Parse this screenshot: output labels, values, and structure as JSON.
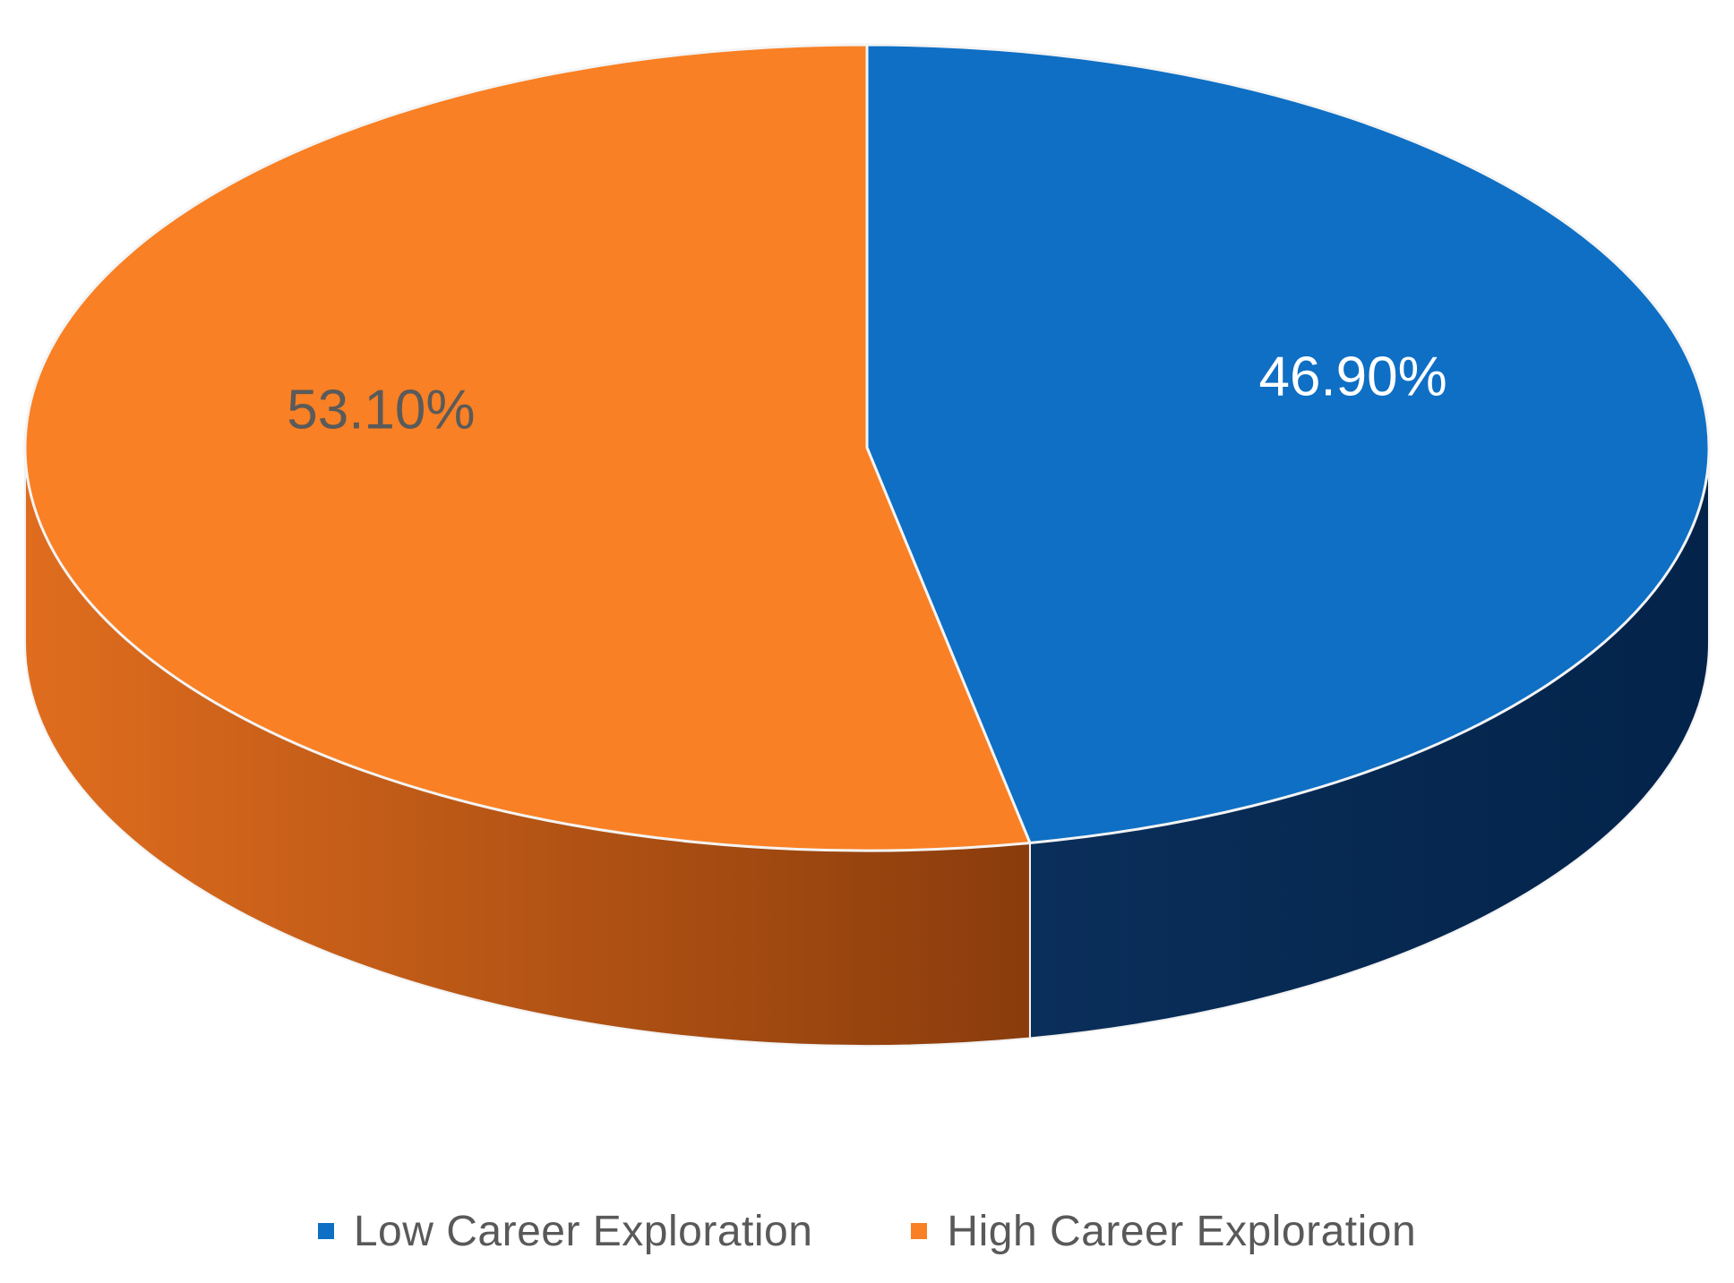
{
  "chart_data": {
    "type": "pie",
    "style": "3d",
    "title": "",
    "series": [
      {
        "name": "Low Career Exploration",
        "value": 46.9,
        "label": "46.90%",
        "color": "#0E6FC4",
        "side_color": "#06284D",
        "label_color": "#ffffff"
      },
      {
        "name": "High Career Exploration",
        "value": 53.1,
        "label": "53.10%",
        "color": "#F98024",
        "side_color": "#B2561A",
        "label_color": "#5a5a5a"
      }
    ],
    "legend": {
      "position": "bottom"
    }
  }
}
